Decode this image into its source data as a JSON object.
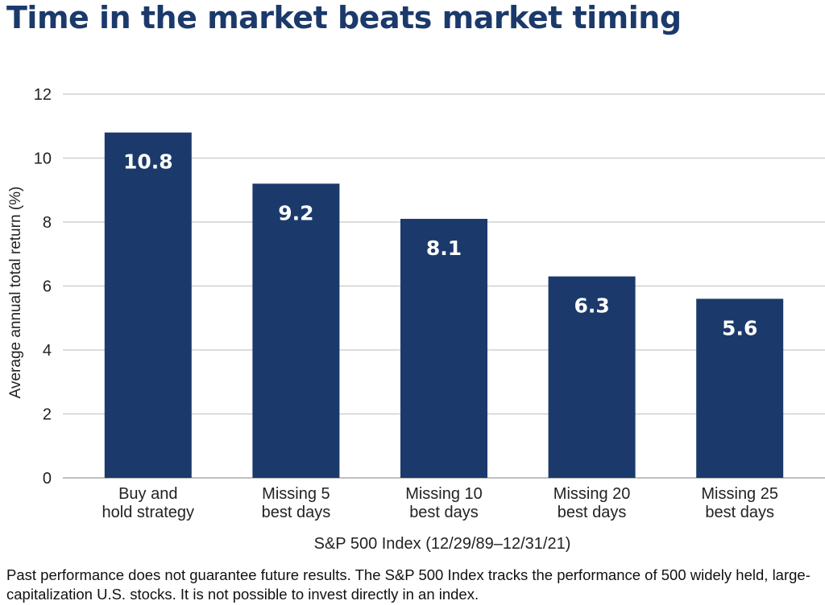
{
  "title": "Time in the market beats market timing",
  "footnote": "Past performance does not guarantee future results.  The S&P 500 Index tracks the performance of 500 widely held, large-capitalization U.S. stocks. It is not possible to invest directly in an index.",
  "colors": {
    "bar": "#1b3a6b",
    "title": "#1b3a6b",
    "grid": "#c8c8c8"
  },
  "chart_data": {
    "type": "bar",
    "categories": [
      [
        "Buy and",
        "hold strategy"
      ],
      [
        "Missing 5",
        "best days"
      ],
      [
        "Missing 10",
        "best days"
      ],
      [
        "Missing 20",
        "best days"
      ],
      [
        "Missing 25",
        "best days"
      ]
    ],
    "values": [
      10.8,
      9.2,
      8.1,
      6.3,
      5.6
    ],
    "data_labels": [
      "10.8",
      "9.2",
      "8.1",
      "6.3",
      "5.6"
    ],
    "xlabel": "S&P 500 Index (12/29/89–12/31/21)",
    "ylabel": "Average annual total return (%)",
    "ylim": [
      0,
      12
    ],
    "yticks": [
      0,
      2,
      4,
      6,
      8,
      10,
      12
    ],
    "grid": true,
    "legend": "none"
  }
}
